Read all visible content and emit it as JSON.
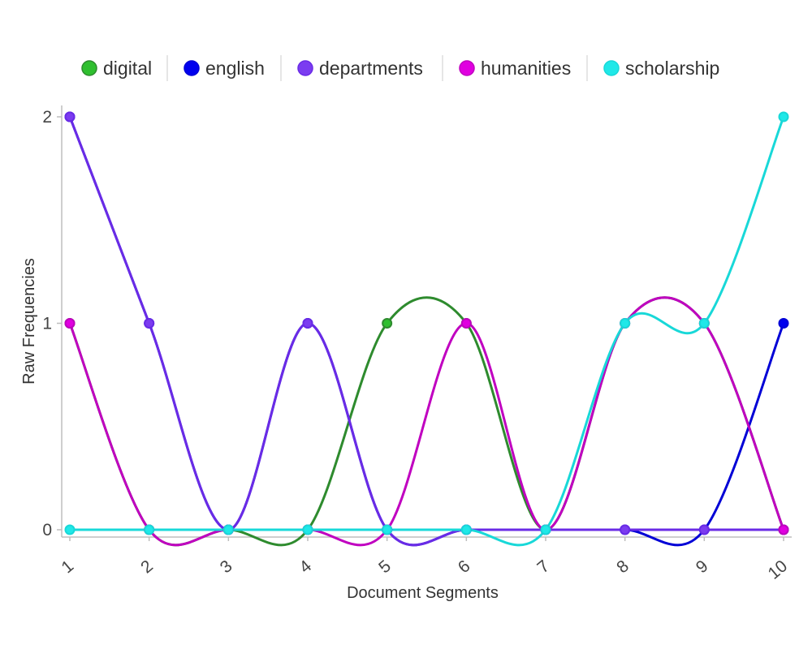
{
  "chart_data": {
    "type": "line",
    "x": [
      1,
      2,
      3,
      4,
      5,
      6,
      7,
      8,
      9,
      10
    ],
    "xlabel": "Document Segments",
    "ylabel": "Raw Frequencies",
    "ylim": [
      0,
      2
    ],
    "yticks": [
      0,
      1,
      2
    ],
    "legend_position": "top",
    "grid": false,
    "interpolation": "smooth",
    "series": [
      {
        "name": "digital",
        "color": "#2e8b2e",
        "values": [
          1,
          0,
          0,
          0,
          1,
          1,
          0,
          1,
          1,
          0
        ]
      },
      {
        "name": "english",
        "color": "#0000d6",
        "values": [
          2,
          1,
          0,
          1,
          0,
          0,
          0,
          0,
          0,
          1
        ]
      },
      {
        "name": "departments",
        "color": "#6a2be6",
        "values": [
          2,
          1,
          0,
          1,
          0,
          0,
          0,
          0,
          0,
          0
        ]
      },
      {
        "name": "humanities",
        "color": "#c000c0",
        "values": [
          1,
          0,
          0,
          0,
          0,
          1,
          0,
          1,
          1,
          0
        ]
      },
      {
        "name": "scholarship",
        "color": "#18d8d8",
        "values": [
          0,
          0,
          0,
          0,
          0,
          0,
          0,
          1,
          1,
          2
        ]
      }
    ]
  },
  "legend": {
    "marker_colors": [
      "#2fbf2f",
      "#0000ee",
      "#7b3cf0",
      "#e000e0",
      "#1fe8e8"
    ]
  }
}
